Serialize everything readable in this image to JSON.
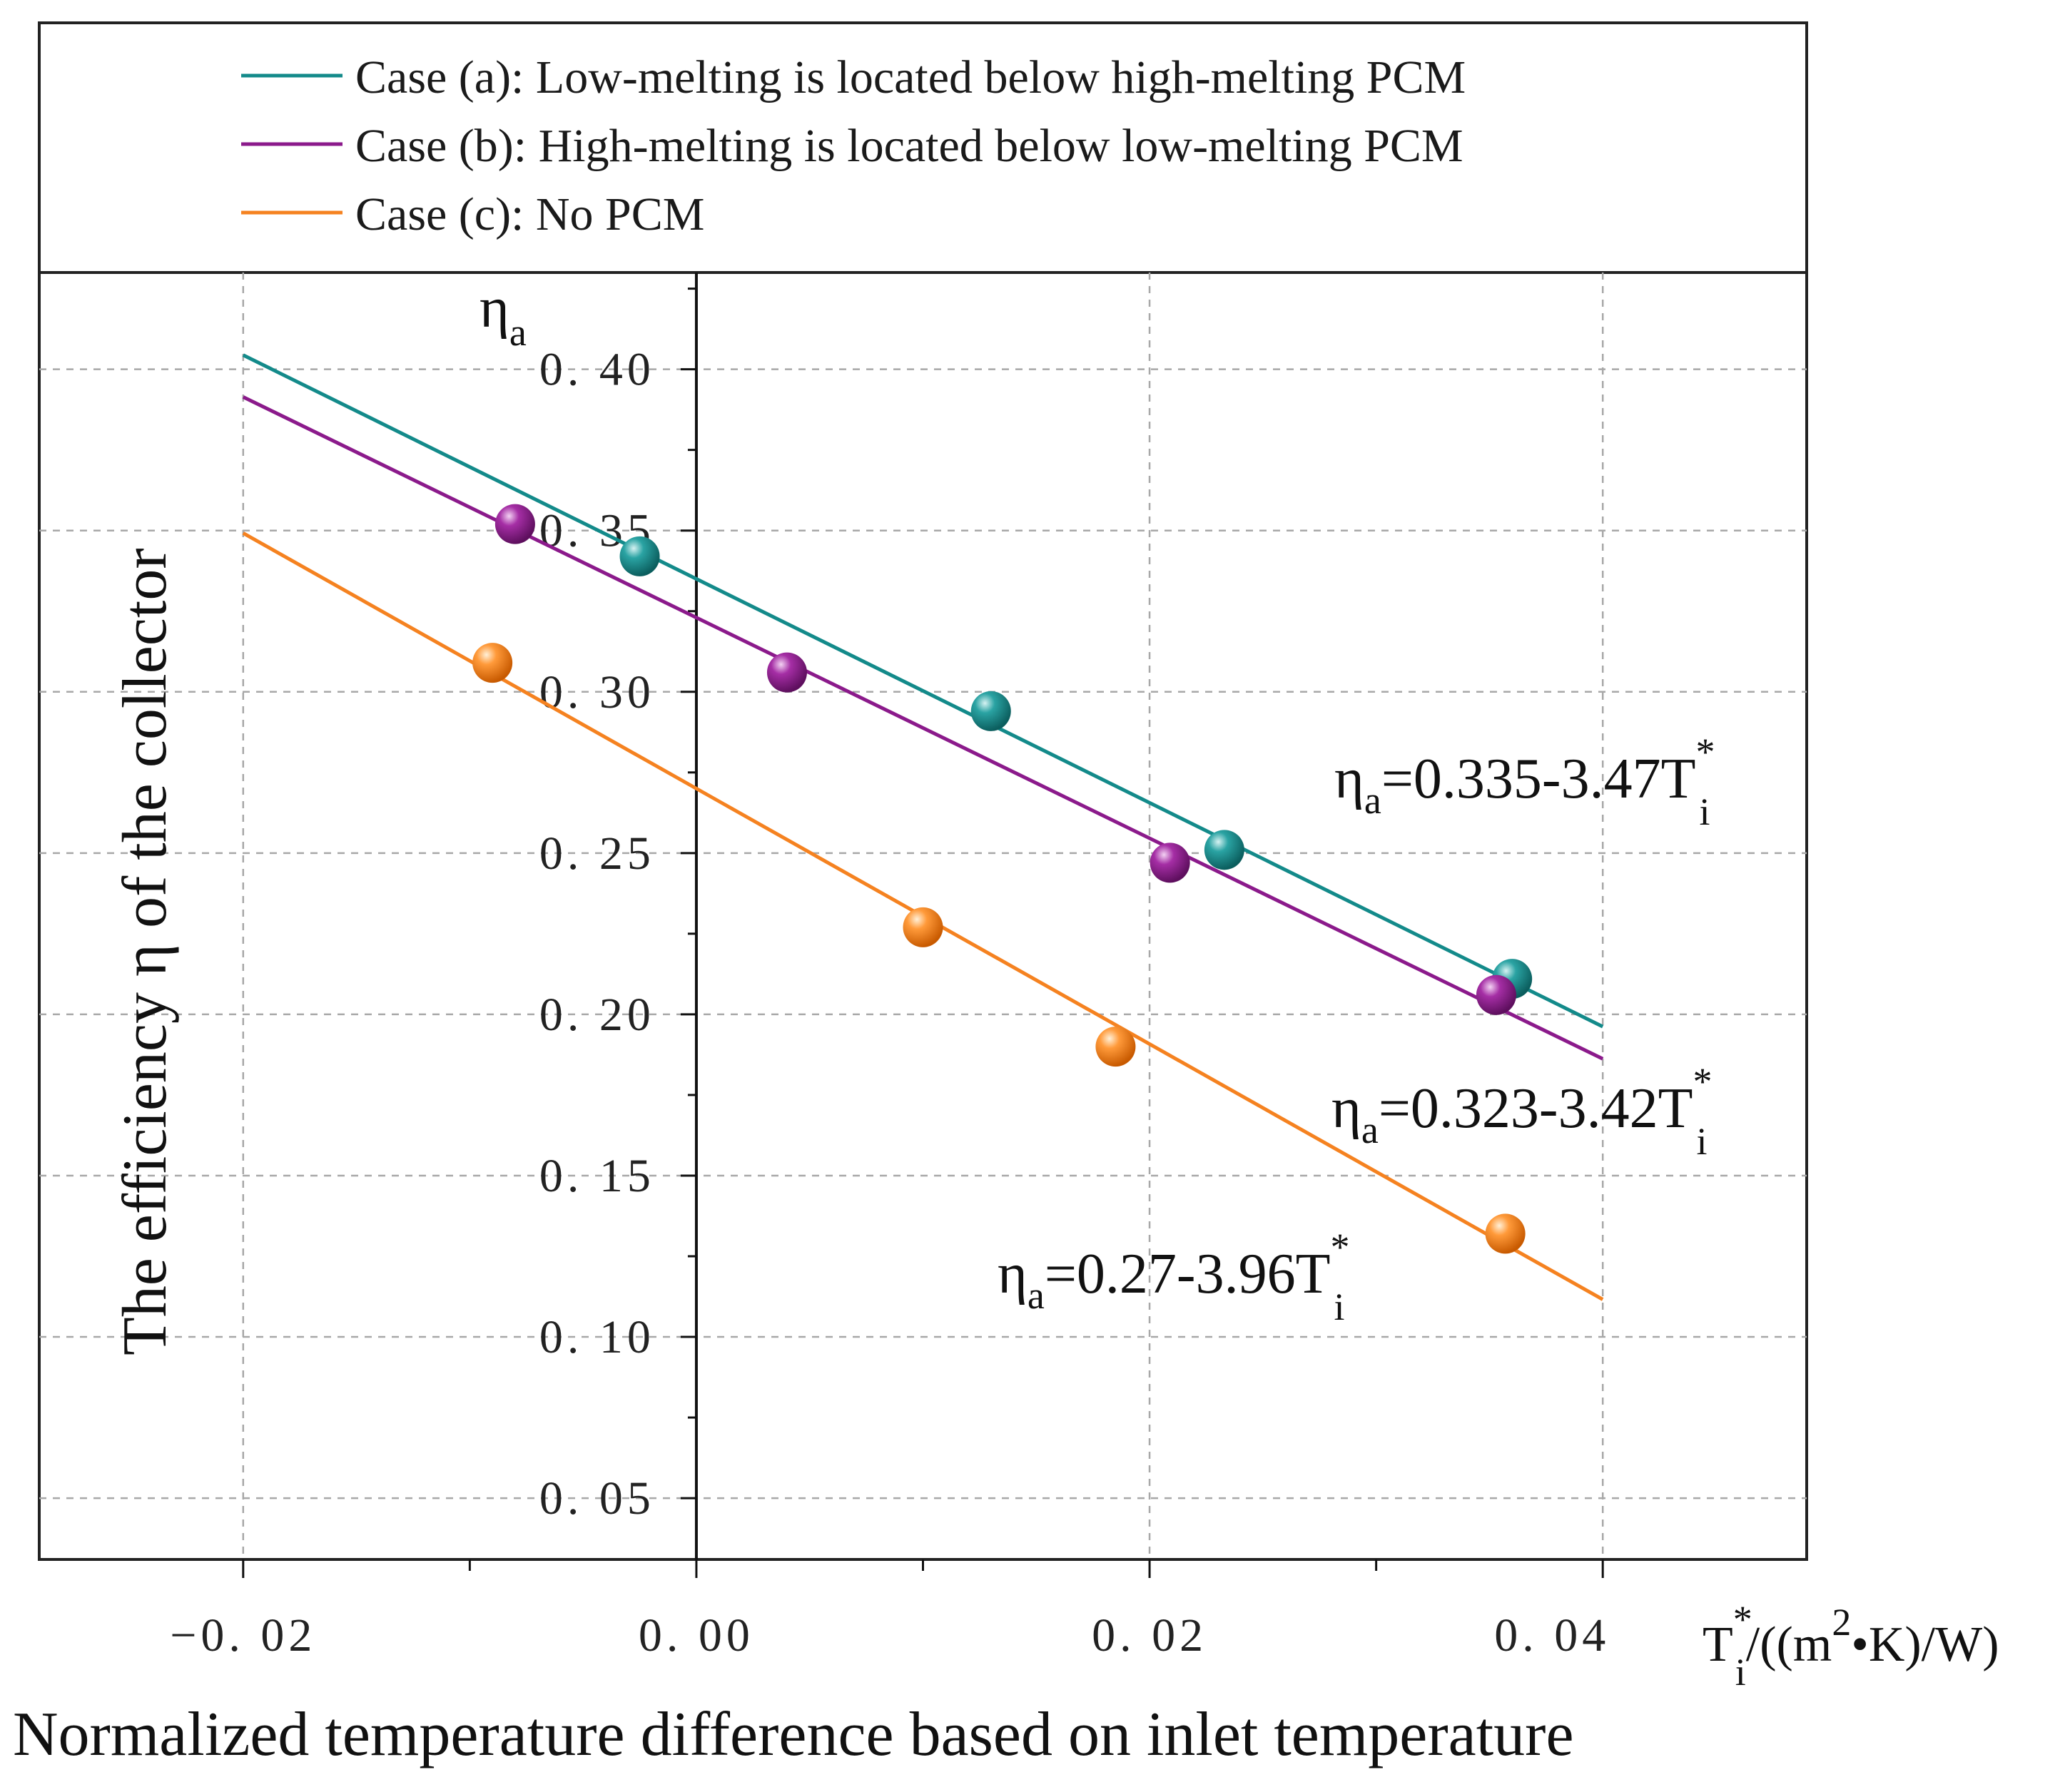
{
  "chart_data": {
    "type": "scatter",
    "xlabel": "Normalized temperature difference based on inlet temperature",
    "ylabel": "The efficiency η of the collector",
    "inner_ylabel": {
      "base": "η",
      "sub": "a"
    },
    "x_unit": {
      "base": "T",
      "sup": "*",
      "sub": "i",
      "unit": "/((m",
      "unit_sup": "2",
      "unit_tail": "•K)/W)"
    },
    "x_ticks": [
      -0.02,
      0.0,
      0.02,
      0.04
    ],
    "x_tick_labels": [
      "−0. 02",
      "0. 00",
      "0. 02",
      "0. 04"
    ],
    "y_ticks": [
      0.05,
      0.1,
      0.15,
      0.2,
      0.25,
      0.3,
      0.35,
      0.4
    ],
    "y_tick_labels": [
      "0. 05",
      "0. 10",
      "0. 15",
      "0. 20",
      "0. 25",
      "0. 30",
      "0. 35",
      "0. 40"
    ],
    "xlim": [
      -0.029,
      0.049
    ],
    "ylim": [
      0.031,
      0.43
    ],
    "grid": true,
    "legend_position": "top",
    "series": [
      {
        "name": "Case (a): Low-melting is located below high-melting PCM",
        "color": "#138a8a",
        "fit": {
          "intercept": 0.335,
          "slope": -3.47
        },
        "line_x": [
          -0.02,
          0.04
        ],
        "equation": {
          "prefix": "η",
          "sub": "a",
          "body": "=0.335-3.47T",
          "sup": "*",
          "sub2": "i"
        },
        "points": [
          {
            "x": -0.0025,
            "y": 0.342
          },
          {
            "x": 0.013,
            "y": 0.294
          },
          {
            "x": 0.0233,
            "y": 0.251
          },
          {
            "x": 0.036,
            "y": 0.211
          }
        ]
      },
      {
        "name": "Case (b): High-melting is located below low-melting PCM",
        "color": "#8b1a8b",
        "fit": {
          "intercept": 0.323,
          "slope": -3.42
        },
        "line_x": [
          -0.02,
          0.04
        ],
        "equation": {
          "prefix": "η",
          "sub": "a",
          "body": "=0.323-3.42T",
          "sup": "*",
          "sub2": "i"
        },
        "points": [
          {
            "x": -0.008,
            "y": 0.352
          },
          {
            "x": 0.004,
            "y": 0.306
          },
          {
            "x": 0.0209,
            "y": 0.247
          },
          {
            "x": 0.0353,
            "y": 0.206
          }
        ]
      },
      {
        "name": "Case (c): No PCM",
        "color": "#f58220",
        "fit": {
          "intercept": 0.27,
          "slope": -3.96
        },
        "line_x": [
          -0.02,
          0.04
        ],
        "equation": {
          "prefix": "η",
          "sub": "a",
          "body": "=0.27-3.96T",
          "sup": "*",
          "sub2": "i"
        },
        "points": [
          {
            "x": -0.009,
            "y": 0.309
          },
          {
            "x": 0.01,
            "y": 0.227
          },
          {
            "x": 0.0185,
            "y": 0.19
          },
          {
            "x": 0.0357,
            "y": 0.132
          }
        ]
      }
    ]
  }
}
